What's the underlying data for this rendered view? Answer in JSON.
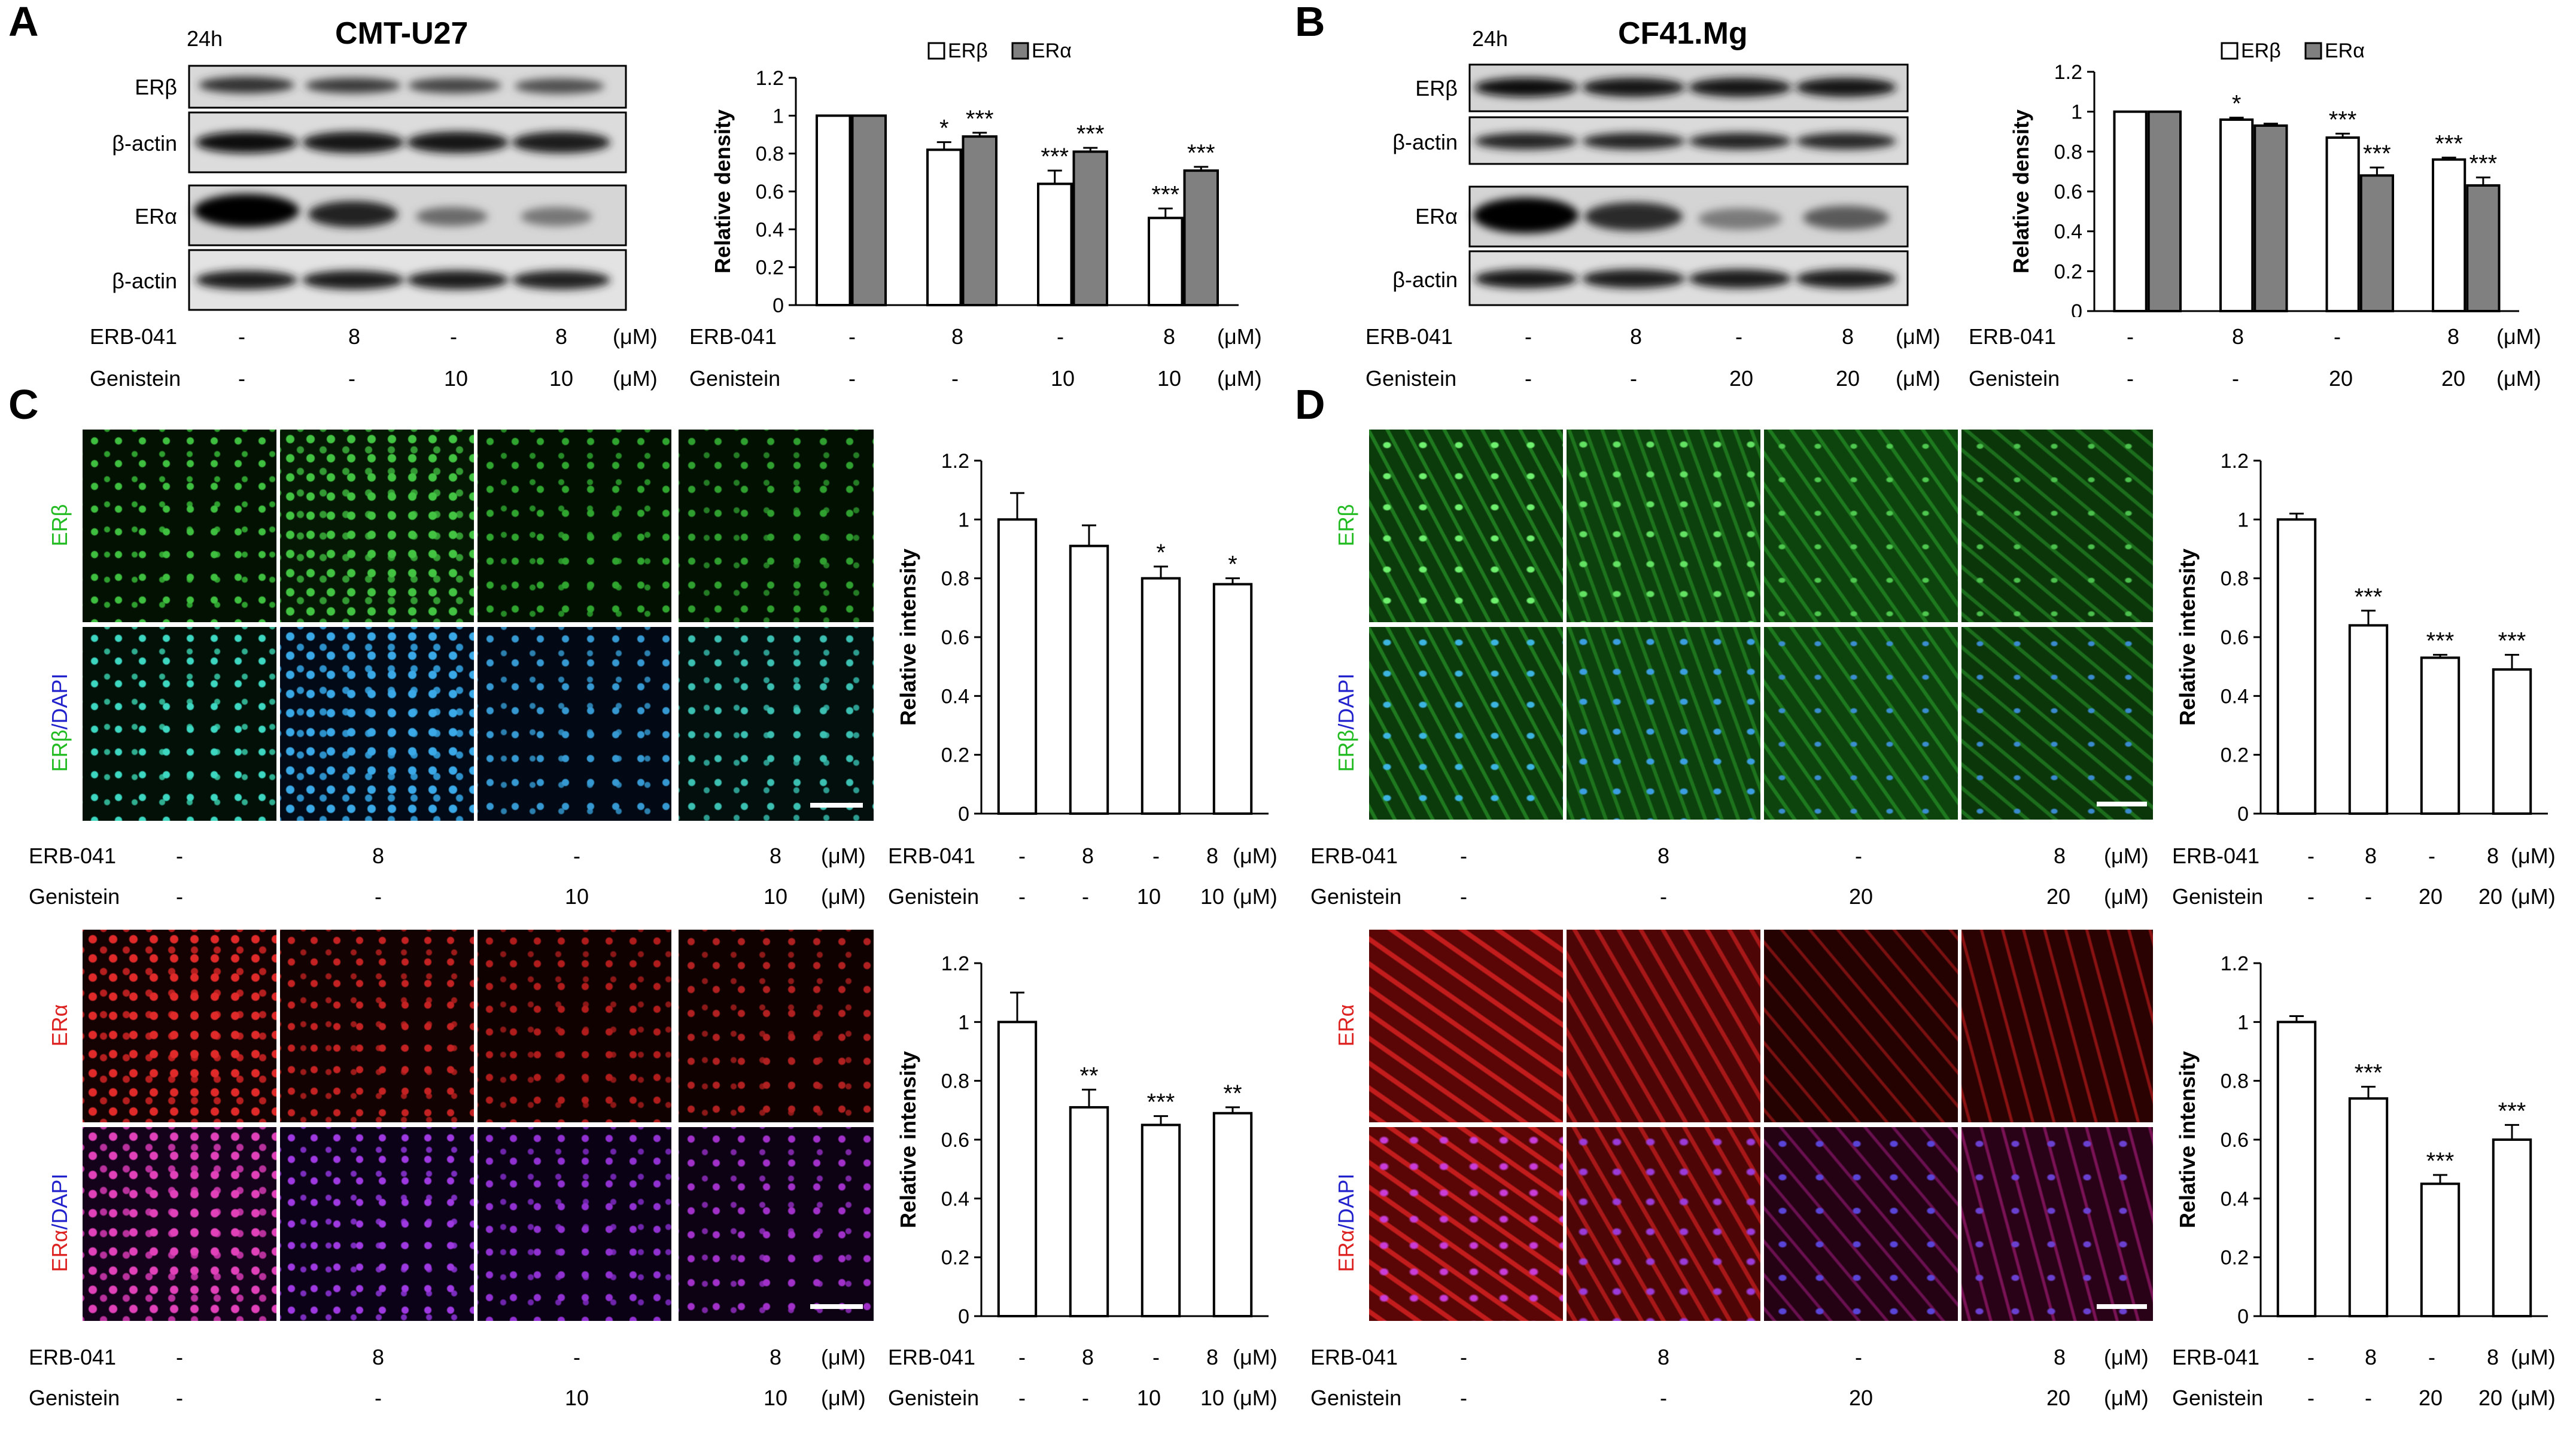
{
  "panels": {
    "A": {
      "label": "A",
      "time": "24h",
      "cell_line": "CMT-U27",
      "blot_labels": [
        "ERβ",
        "β-actin",
        "ERα",
        "β-actin"
      ]
    },
    "B": {
      "label": "B",
      "time": "24h",
      "cell_line": "CF41.Mg",
      "blot_labels": [
        "ERβ",
        "β-actin",
        "ERα",
        "β-actin"
      ]
    },
    "C": {
      "label": "C",
      "stain_labels": {
        "erb": "ERβ",
        "erb_dapi_1": "ERβ",
        "erb_dapi_2": "/DAPI",
        "era": "ERα",
        "era_dapi_1": "ERα",
        "era_dapi_2": "/DAPI"
      }
    },
    "D": {
      "label": "D",
      "stain_labels": {
        "erb": "ERβ",
        "erb_dapi_1": "ERβ",
        "erb_dapi_2": "/DAPI",
        "era": "ERα",
        "era_dapi_1": "ERα",
        "era_dapi_2": "/DAPI"
      }
    }
  },
  "conditions": {
    "erb_label": "ERB-041",
    "gen_label": "Genistein",
    "unit": "(μM)",
    "A_erb": [
      "-",
      "8",
      "-",
      "8"
    ],
    "A_gen": [
      "-",
      "-",
      "10",
      "10"
    ],
    "B_erb": [
      "-",
      "8",
      "-",
      "8"
    ],
    "B_gen": [
      "-",
      "-",
      "20",
      "20"
    ],
    "C_erb": [
      "-",
      "8",
      "-",
      "8"
    ],
    "C_gen": [
      "-",
      "-",
      "10",
      "10"
    ],
    "D_erb": [
      "-",
      "8",
      "-",
      "8"
    ],
    "D_gen": [
      "-",
      "-",
      "20",
      "20"
    ]
  },
  "chart_data": [
    {
      "id": "A-chart",
      "type": "bar",
      "ylabel": "Relative density",
      "ylim": [
        0,
        1.2
      ],
      "yticks": [
        "0",
        "0.2",
        "0.4",
        "0.6",
        "0.8",
        "1",
        "1.2"
      ],
      "legend": "top",
      "series": [
        {
          "name": "ERβ",
          "color": "#ffffff",
          "values": [
            1.0,
            0.82,
            0.64,
            0.46
          ],
          "errors": [
            0,
            0.04,
            0.07,
            0.05
          ],
          "sig": [
            "",
            "*",
            "***",
            "***"
          ]
        },
        {
          "name": "ERα",
          "color": "#808080",
          "values": [
            1.0,
            0.89,
            0.81,
            0.71
          ],
          "errors": [
            0,
            0.02,
            0.02,
            0.02
          ],
          "sig": [
            "",
            "***",
            "***",
            "***"
          ]
        }
      ]
    },
    {
      "id": "B-chart",
      "type": "bar",
      "ylabel": "Relative density",
      "ylim": [
        0,
        1.2
      ],
      "yticks": [
        "0",
        "0.2",
        "0.4",
        "0.6",
        "0.8",
        "1",
        "1.2"
      ],
      "legend": "top",
      "series": [
        {
          "name": "ERβ",
          "color": "#ffffff",
          "values": [
            1.0,
            0.96,
            0.87,
            0.76
          ],
          "errors": [
            0,
            0.01,
            0.02,
            0.01
          ],
          "sig": [
            "",
            "*",
            "***",
            "***"
          ]
        },
        {
          "name": "ERα",
          "color": "#808080",
          "values": [
            1.0,
            0.93,
            0.68,
            0.63
          ],
          "errors": [
            0,
            0.01,
            0.04,
            0.04
          ],
          "sig": [
            "",
            "",
            "***",
            "***"
          ]
        }
      ]
    },
    {
      "id": "C1-chart",
      "type": "bar",
      "ylabel": "Relative intensity",
      "ylim": [
        0,
        1.2
      ],
      "yticks": [
        "0",
        "0.2",
        "0.4",
        "0.6",
        "0.8",
        "1",
        "1.2"
      ],
      "series": [
        {
          "name": "",
          "color": "#ffffff",
          "values": [
            1.0,
            0.91,
            0.8,
            0.78
          ],
          "errors": [
            0.09,
            0.07,
            0.04,
            0.02
          ],
          "sig": [
            "",
            "",
            "*",
            "*"
          ]
        }
      ]
    },
    {
      "id": "C2-chart",
      "type": "bar",
      "ylabel": "Relative intensity",
      "ylim": [
        0,
        1.2
      ],
      "yticks": [
        "0",
        "0.2",
        "0.4",
        "0.6",
        "0.8",
        "1",
        "1.2"
      ],
      "series": [
        {
          "name": "",
          "color": "#ffffff",
          "values": [
            1.0,
            0.71,
            0.65,
            0.69
          ],
          "errors": [
            0.1,
            0.06,
            0.03,
            0.02
          ],
          "sig": [
            "",
            "**",
            "***",
            "**"
          ]
        }
      ]
    },
    {
      "id": "D1-chart",
      "type": "bar",
      "ylabel": "Relative intensity",
      "ylim": [
        0,
        1.2
      ],
      "yticks": [
        "0",
        "0.2",
        "0.4",
        "0.6",
        "0.8",
        "1",
        "1.2"
      ],
      "series": [
        {
          "name": "",
          "color": "#ffffff",
          "values": [
            1.0,
            0.64,
            0.53,
            0.49
          ],
          "errors": [
            0.02,
            0.05,
            0.01,
            0.05
          ],
          "sig": [
            "",
            "***",
            "***",
            "***"
          ]
        }
      ]
    },
    {
      "id": "D2-chart",
      "type": "bar",
      "ylabel": "Relative intensity",
      "ylim": [
        0,
        1.2
      ],
      "yticks": [
        "0",
        "0.2",
        "0.4",
        "0.6",
        "0.8",
        "1",
        "1.2"
      ],
      "series": [
        {
          "name": "",
          "color": "#ffffff",
          "values": [
            1.0,
            0.74,
            0.45,
            0.6
          ],
          "errors": [
            0.02,
            0.04,
            0.03,
            0.05
          ],
          "sig": [
            "",
            "***",
            "***",
            "***"
          ]
        }
      ]
    }
  ]
}
